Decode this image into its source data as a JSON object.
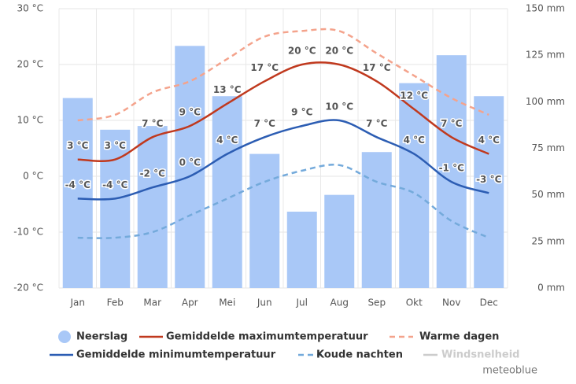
{
  "chart_data": {
    "type": "bar-line",
    "categories": [
      "Jan",
      "Feb",
      "Mar",
      "Apr",
      "Mei",
      "Jun",
      "Jul",
      "Aug",
      "Sep",
      "Okt",
      "Nov",
      "Dec"
    ],
    "ylim": [
      -20,
      30
    ],
    "yticks": [
      {
        "value": -20,
        "label": "-20 °C"
      },
      {
        "value": -10,
        "label": "-10 °C"
      },
      {
        "value": 0,
        "label": "0 °C"
      },
      {
        "value": 10,
        "label": "10 °C"
      },
      {
        "value": 20,
        "label": "20 °C"
      },
      {
        "value": 30,
        "label": "30 °C"
      }
    ],
    "y2lim": [
      0,
      150
    ],
    "y2ticks": [
      {
        "value": 0,
        "label": "0 mm"
      },
      {
        "value": 25,
        "label": "25 mm"
      },
      {
        "value": 50,
        "label": "50 mm"
      },
      {
        "value": 75,
        "label": "75 mm"
      },
      {
        "value": 100,
        "label": "100 mm"
      },
      {
        "value": 125,
        "label": "125 mm"
      },
      {
        "value": 150,
        "label": "150 mm"
      }
    ],
    "grid": true,
    "series": [
      {
        "name": "Neerslag",
        "type": "bar",
        "axis": "y2",
        "color": "#a9c8f7",
        "values": [
          102,
          85,
          87,
          130,
          103,
          72,
          41,
          50,
          73,
          110,
          125,
          103
        ]
      },
      {
        "name": "Gemiddelde maximumtemperatuur",
        "type": "line",
        "color": "#c0391e",
        "values": [
          3,
          3,
          7,
          9,
          13,
          17,
          20,
          20,
          17,
          12,
          7,
          4
        ],
        "value_labels": [
          "3 °C",
          "3 °C",
          "7 °C",
          "9 °C",
          "13 °C",
          "17 °C",
          "20 °C",
          "20 °C",
          "17 °C",
          "12 °C",
          "7 °C",
          "4 °C"
        ]
      },
      {
        "name": "Warme dagen",
        "type": "dashed",
        "color": "#f4a38c",
        "values": [
          10,
          11,
          15,
          17,
          21,
          25,
          26,
          26,
          22,
          18,
          14,
          11
        ]
      },
      {
        "name": "Gemiddelde minimumtemperatuur",
        "type": "line",
        "color": "#2c5db3",
        "values": [
          -4,
          -4,
          -2,
          0,
          4,
          7,
          9,
          10,
          7,
          4,
          -1,
          -3
        ],
        "value_labels": [
          "-4 °C",
          "-4 °C",
          "-2 °C",
          "0 °C",
          "4 °C",
          "7 °C",
          "9 °C",
          "10 °C",
          "7 °C",
          "4 °C",
          "-1 °C",
          "-3 °C"
        ]
      },
      {
        "name": "Koude nachten",
        "type": "dashed",
        "color": "#74aadb",
        "values": [
          -11,
          -11,
          -10,
          -7,
          -4,
          -1,
          1,
          2,
          -1,
          -3,
          -8,
          -11
        ]
      }
    ],
    "inactive_legend": [
      "Windsnelheid"
    ],
    "credit": "meteoblue"
  }
}
